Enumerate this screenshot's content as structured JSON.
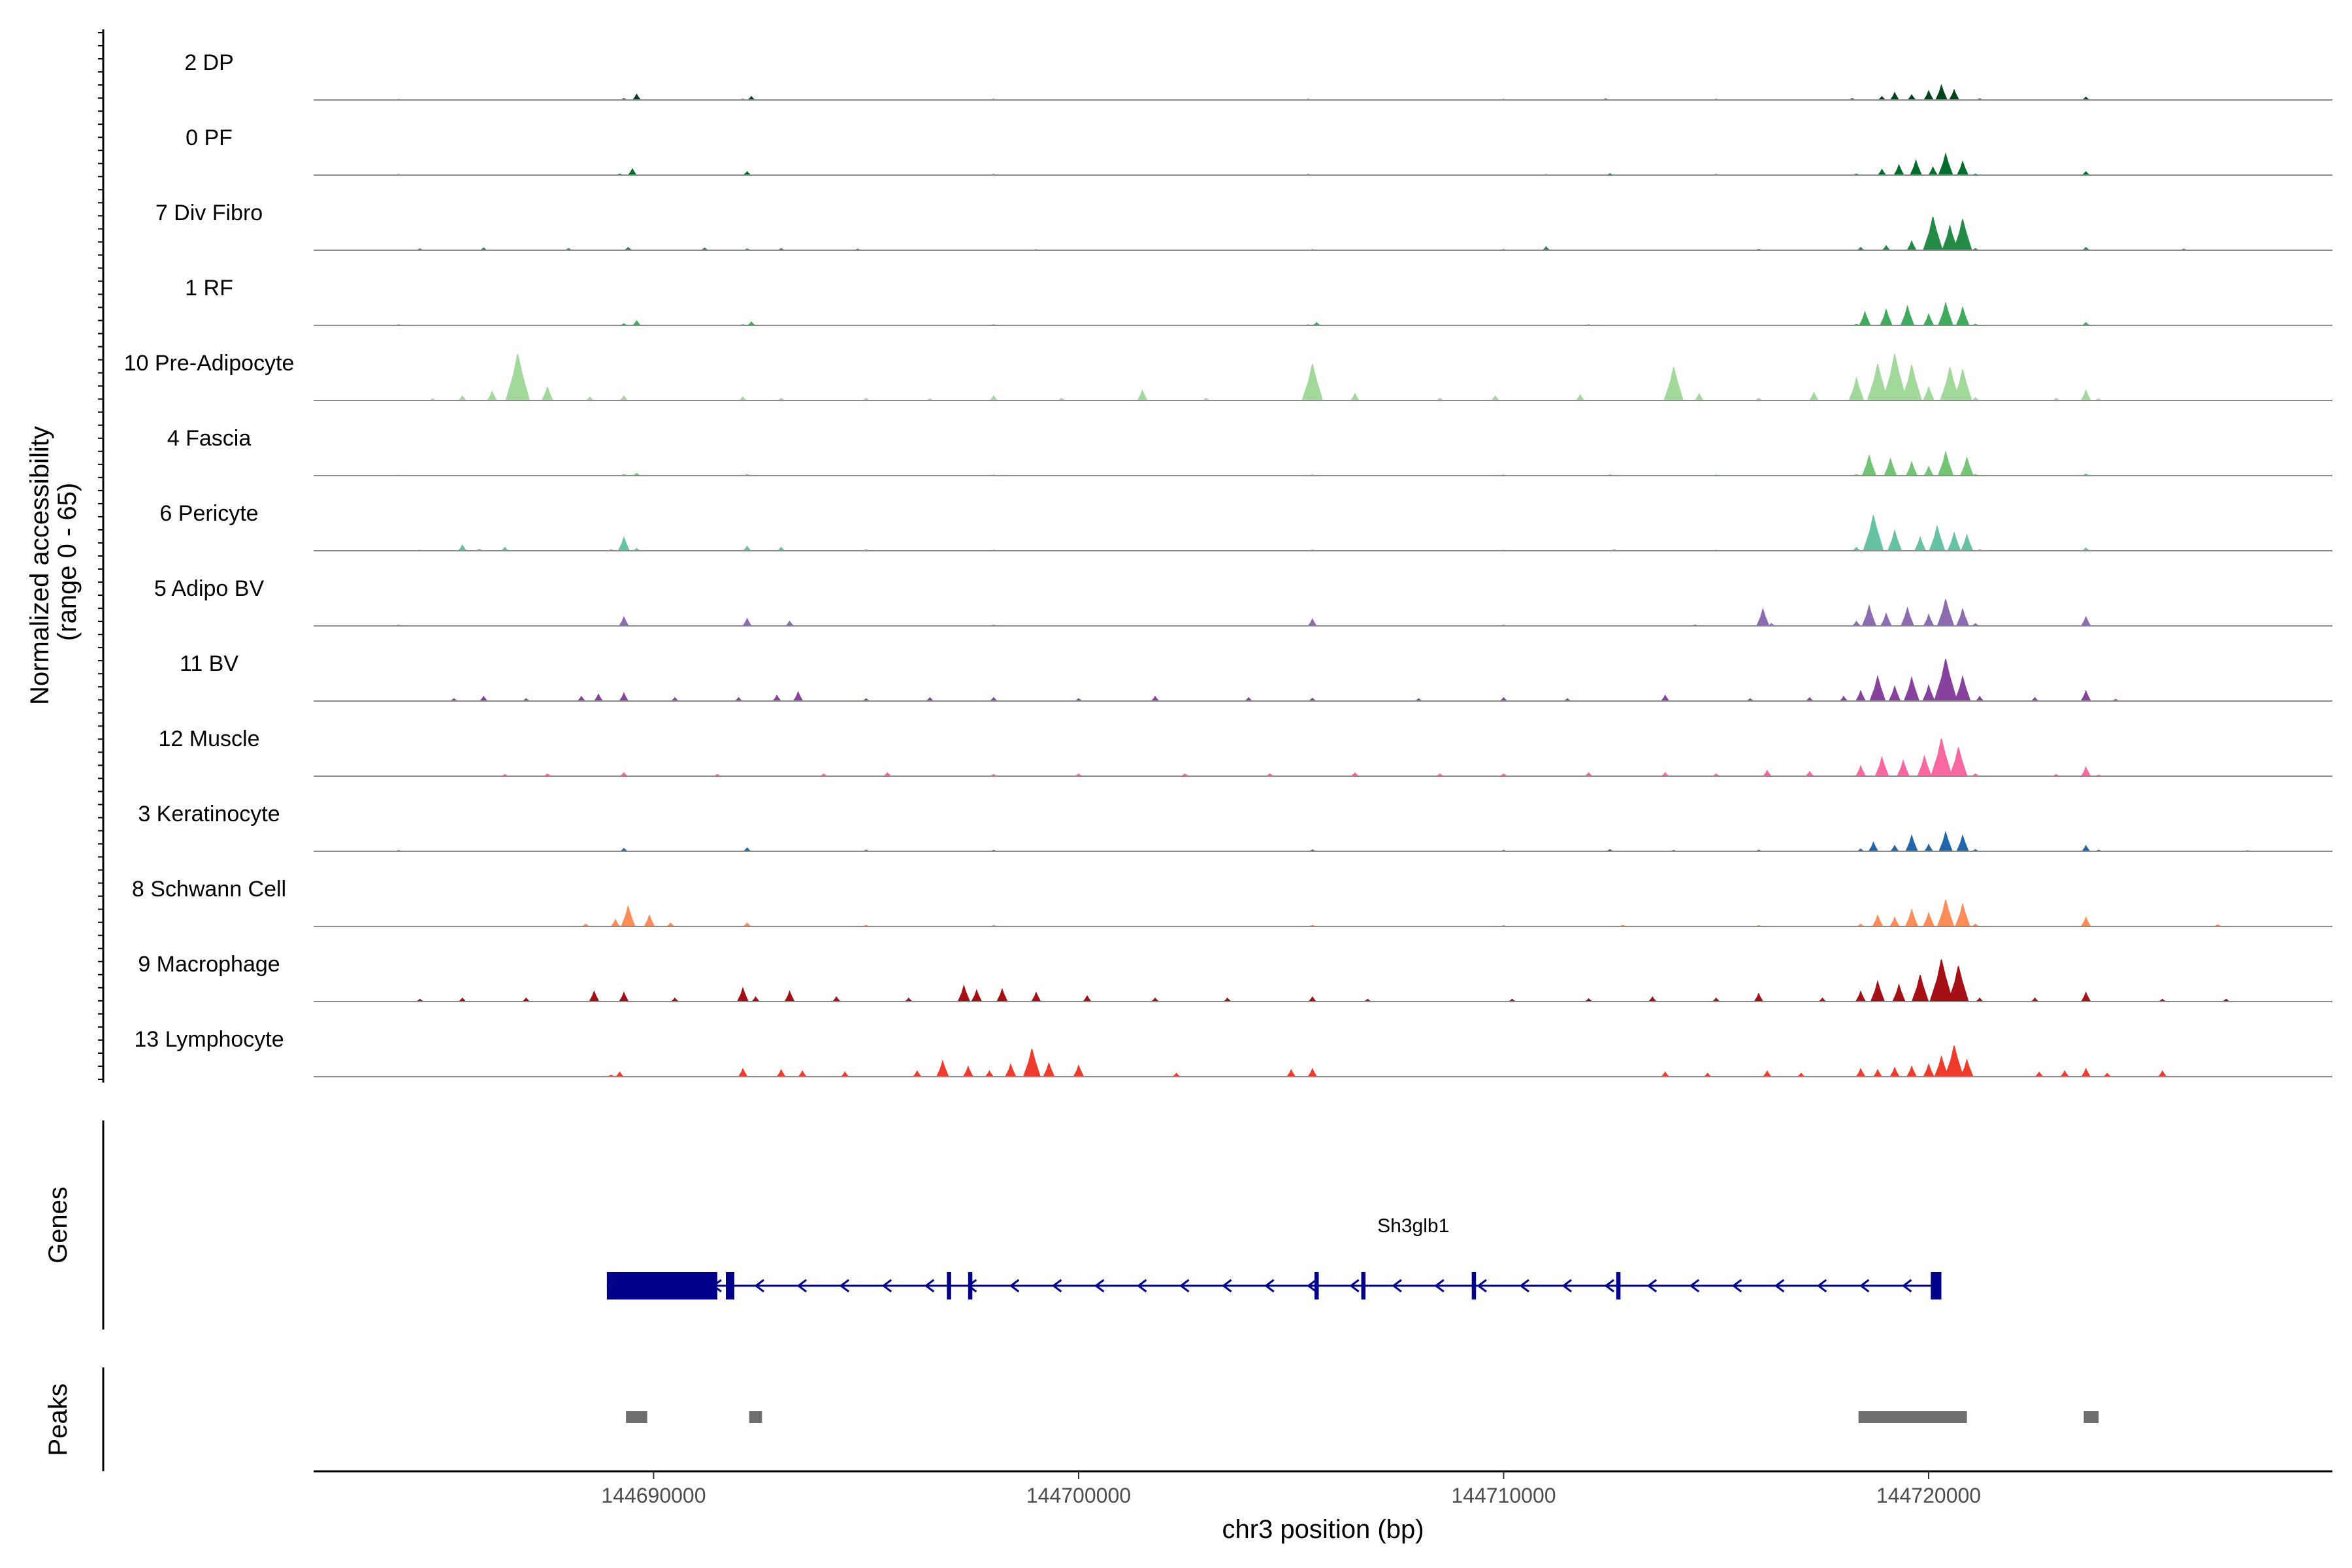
{
  "chart_data": {
    "type": "area",
    "title": "",
    "ylabel_line1": "Normalized accessibility",
    "ylabel_line2": "(range 0 - 65)",
    "ylim": [
      0,
      65
    ],
    "xlabel": "chr3 position (bp)",
    "xlim": [
      144682000,
      144729500
    ],
    "x_ticks": [
      144690000,
      144700000,
      144710000,
      144720000
    ],
    "x_tick_labels": [
      "144690000",
      "144700000",
      "144710000",
      "144720000"
    ],
    "genes_label": "Genes",
    "peaks_label": "Peaks",
    "gene": {
      "name": "Sh3glb1",
      "strand": "-",
      "start": 144688900,
      "end": 144720250,
      "exons": [
        {
          "start": 144688900,
          "end": 144691500,
          "thick": true
        },
        {
          "start": 144691700,
          "end": 144691900,
          "thick": false
        },
        {
          "start": 144696900,
          "end": 144697000,
          "thick": false
        },
        {
          "start": 144697400,
          "end": 144697500,
          "thick": false
        },
        {
          "start": 144705550,
          "end": 144705650,
          "thick": false
        },
        {
          "start": 144706650,
          "end": 144706750,
          "thick": false
        },
        {
          "start": 144709250,
          "end": 144709350,
          "thick": false
        },
        {
          "start": 144712650,
          "end": 144712750,
          "thick": false
        },
        {
          "start": 144720050,
          "end": 144720300,
          "thick": false
        }
      ]
    },
    "peaks": [
      {
        "start": 144689350,
        "end": 144689850
      },
      {
        "start": 144692250,
        "end": 144692550
      },
      {
        "start": 144718350,
        "end": 144720900
      },
      {
        "start": 144723650,
        "end": 144724000
      }
    ],
    "series": [
      {
        "name": "2 DP",
        "color": "#00441b",
        "x": [
          144684000,
          144689300,
          144689600,
          144692100,
          144692300,
          144698000,
          144705400,
          144710000,
          144712400,
          144715000,
          144718200,
          144718900,
          144719200,
          144719600,
          144720000,
          144720300,
          144720600,
          144721200,
          144723700
        ],
        "y": [
          0.4,
          1.2,
          5.0,
          0.6,
          3.0,
          0.5,
          0.5,
          0.4,
          0.9,
          0.5,
          1.2,
          3.0,
          6.5,
          4.5,
          8.0,
          13.0,
          9.0,
          1.0,
          2.5
        ]
      },
      {
        "name": "0 PF",
        "color": "#006d2c",
        "x": [
          144684000,
          144689200,
          144689500,
          144692200,
          144698000,
          144705400,
          144711000,
          144712500,
          144715000,
          144718300,
          144718900,
          144719300,
          144719700,
          144720100,
          144720400,
          144720800,
          144721100,
          144723700
        ],
        "y": [
          0.4,
          1.0,
          5.5,
          3.0,
          0.5,
          0.5,
          0.4,
          1.2,
          0.5,
          1.0,
          5.0,
          9.0,
          13.0,
          7.0,
          19.0,
          12.0,
          1.0,
          3.0
        ]
      },
      {
        "name": "7 Div Fibro",
        "color": "#238b45",
        "x": [
          144684500,
          144686000,
          144688000,
          144689400,
          144691200,
          144692200,
          144693000,
          144694800,
          144699000,
          144705500,
          144710000,
          144711000,
          144716000,
          144718400,
          144719000,
          144719600,
          144720100,
          144720500,
          144720800,
          144721100,
          144723700,
          144726000
        ],
        "y": [
          1.2,
          2.0,
          1.5,
          2.5,
          2.0,
          1.2,
          1.5,
          1.0,
          0.5,
          0.5,
          0.6,
          3.0,
          0.8,
          2.5,
          4.0,
          8.0,
          30.0,
          22.0,
          28.0,
          1.5,
          2.5,
          1.0
        ]
      },
      {
        "name": "1 RF",
        "color": "#41ab5d",
        "x": [
          144684000,
          144689300,
          144689600,
          144692100,
          144692300,
          144698000,
          144705400,
          144705600,
          144712000,
          144718300,
          144718500,
          144719000,
          144719500,
          144720000,
          144720400,
          144720800,
          144721100,
          144723700
        ],
        "y": [
          0.5,
          1.5,
          4.0,
          0.6,
          3.0,
          0.5,
          0.5,
          2.5,
          0.5,
          1.0,
          12.0,
          14.0,
          17.0,
          10.0,
          20.0,
          16.0,
          1.0,
          2.5
        ]
      },
      {
        "name": "10 Pre-Adipocyte",
        "color": "#a1d99b",
        "x": [
          144684800,
          144685500,
          144686200,
          144686800,
          144687500,
          144688500,
          144689300,
          144692100,
          144693000,
          144695000,
          144696500,
          144698000,
          144699600,
          144701500,
          144703000,
          144705500,
          144706500,
          144708500,
          144709800,
          144711800,
          144714000,
          144714600,
          144716000,
          144717300,
          144718300,
          144718800,
          144719200,
          144719600,
          144720000,
          144720500,
          144720800,
          144721100,
          144723000,
          144723700,
          144724000
        ],
        "y": [
          1.5,
          4.0,
          8.0,
          42.0,
          12.0,
          3.0,
          4.0,
          3.0,
          2.0,
          2.0,
          1.5,
          4.0,
          2.0,
          9.0,
          2.0,
          33.0,
          6.0,
          2.0,
          4.0,
          5.0,
          30.0,
          6.0,
          2.0,
          7.0,
          20.0,
          33.0,
          42.0,
          32.0,
          12.0,
          30.0,
          28.0,
          2.5,
          2.0,
          9.0,
          1.5
        ]
      },
      {
        "name": "4 Fascia",
        "color": "#74c476",
        "x": [
          144684000,
          144689300,
          144689600,
          144692200,
          144698000,
          144705500,
          144710000,
          144712500,
          144715000,
          144718300,
          144718600,
          144719100,
          144719600,
          144720000,
          144720400,
          144720900,
          144721100,
          144723700
        ],
        "y": [
          0.4,
          1.0,
          2.0,
          1.0,
          0.5,
          0.6,
          0.5,
          0.8,
          0.5,
          1.0,
          18.0,
          15.0,
          12.0,
          8.0,
          21.0,
          16.0,
          1.0,
          1.5
        ]
      },
      {
        "name": "6 Pericyte",
        "color": "#66c2a4",
        "x": [
          144684500,
          144685500,
          144685900,
          144686500,
          144689000,
          144689300,
          144689600,
          144692200,
          144693000,
          144695000,
          144698000,
          144705500,
          144710000,
          144712600,
          144715000,
          144718300,
          144718700,
          144719200,
          144719800,
          144720200,
          144720600,
          144720900,
          144721200,
          144723700
        ],
        "y": [
          0.5,
          5.0,
          1.5,
          3.0,
          1.0,
          12.0,
          2.0,
          4.0,
          3.0,
          1.0,
          0.5,
          0.7,
          0.5,
          1.0,
          0.5,
          3.0,
          32.0,
          18.0,
          12.0,
          22.0,
          16.0,
          14.0,
          1.0,
          2.5
        ]
      },
      {
        "name": "5 Adipo BV",
        "color": "#8c6bb1",
        "x": [
          144684000,
          144689300,
          144692200,
          144693200,
          144698000,
          144705500,
          144710000,
          144714500,
          144716100,
          144716300,
          144718300,
          144718600,
          144719000,
          144719500,
          144720000,
          144720400,
          144720800,
          144721100,
          144723700
        ],
        "y": [
          0.6,
          8.0,
          6.5,
          4.0,
          0.6,
          6.0,
          0.6,
          0.8,
          15.0,
          2.0,
          4.0,
          18.0,
          11.0,
          16.0,
          10.0,
          24.0,
          15.0,
          2.0,
          8.0
        ]
      },
      {
        "name": "11 BV",
        "color": "#88419d",
        "x": [
          144685300,
          144686000,
          144687000,
          144688300,
          144688700,
          144689300,
          144690500,
          144692000,
          144692900,
          144693400,
          144695000,
          144696500,
          144698000,
          144700000,
          144701800,
          144704000,
          144705500,
          144708000,
          144710000,
          144711500,
          144713800,
          144715800,
          144717200,
          144718000,
          144718400,
          144718800,
          144719200,
          144719600,
          144720000,
          144720400,
          144720800,
          144721200,
          144722500,
          144723700,
          144724400
        ],
        "y": [
          2.0,
          4.0,
          2.0,
          4.0,
          6.0,
          7.0,
          3.0,
          3.0,
          5.0,
          8.0,
          2.0,
          3.0,
          3.0,
          2.0,
          4.0,
          3.0,
          2.5,
          2.0,
          3.0,
          2.0,
          5.0,
          2.0,
          3.0,
          4.0,
          9.0,
          22.0,
          13.0,
          21.0,
          14.0,
          38.0,
          22.0,
          4.0,
          3.0,
          9.0,
          1.5
        ]
      },
      {
        "name": "12 Muscle",
        "color": "#f768a1",
        "x": [
          144686500,
          144687500,
          144689300,
          144691500,
          144694000,
          144695500,
          144698000,
          144700000,
          144702500,
          144704500,
          144706500,
          144708500,
          144710000,
          144712000,
          144713800,
          144715000,
          144716200,
          144717200,
          144718400,
          144718900,
          144719400,
          144719900,
          144720300,
          144720700,
          144721100,
          144723000,
          144723700,
          144724000
        ],
        "y": [
          1.5,
          2.0,
          3.0,
          1.5,
          2.0,
          3.0,
          1.5,
          2.0,
          2.0,
          2.0,
          3.0,
          2.0,
          2.0,
          3.0,
          3.0,
          2.0,
          5.0,
          4.0,
          9.0,
          17.0,
          14.0,
          18.0,
          34.0,
          26.0,
          2.0,
          1.5,
          8.0,
          1.0
        ]
      },
      {
        "name": "3 Keratinocyte",
        "color": "#2166ac",
        "x": [
          144684000,
          144689300,
          144692200,
          144695000,
          144698000,
          144705500,
          144710000,
          144712500,
          144714000,
          144716000,
          144718400,
          144718700,
          144719200,
          144719600,
          144720000,
          144720400,
          144720800,
          144721100,
          144723700,
          144724000,
          144727500
        ],
        "y": [
          0.6,
          2.5,
          3.0,
          1.0,
          0.8,
          1.2,
          0.8,
          1.5,
          0.8,
          1.0,
          2.0,
          8.0,
          5.0,
          14.0,
          6.0,
          17.0,
          14.0,
          1.5,
          5.0,
          1.0,
          0.5
        ]
      },
      {
        "name": "8 Schwann Cell",
        "color": "#fc8d59",
        "x": [
          144688400,
          144689100,
          144689400,
          144689900,
          144690400,
          144692200,
          144695000,
          144698000,
          144705500,
          144710000,
          144712800,
          144716000,
          144718400,
          144718800,
          144719200,
          144719600,
          144720000,
          144720400,
          144720800,
          144721100,
          144723700,
          144726800
        ],
        "y": [
          2.0,
          6.0,
          18.0,
          10.0,
          3.0,
          3.0,
          1.0,
          0.8,
          1.0,
          0.8,
          1.0,
          0.8,
          2.0,
          10.0,
          8.0,
          15.0,
          12.0,
          24.0,
          20.0,
          2.0,
          8.0,
          1.5
        ]
      },
      {
        "name": "9 Macrophage",
        "color": "#a50f15",
        "x": [
          144684500,
          144685500,
          144687000,
          144688600,
          144689300,
          144690500,
          144692100,
          144692400,
          144693200,
          144694300,
          144696000,
          144697300,
          144697600,
          144698200,
          144699000,
          144700200,
          144701800,
          144703500,
          144705500,
          144706800,
          144710200,
          144712000,
          144713500,
          144715000,
          144716000,
          144717500,
          144718400,
          144718800,
          144719300,
          144719800,
          144720300,
          144720700,
          144721200,
          144722500,
          144723700,
          144725500,
          144727000
        ],
        "y": [
          2.0,
          3.0,
          3.0,
          9.0,
          8.0,
          3.0,
          12.0,
          4.0,
          9.0,
          4.0,
          3.0,
          14.0,
          10.0,
          11.0,
          8.0,
          5.0,
          3.0,
          3.0,
          4.0,
          2.0,
          2.0,
          2.5,
          4.0,
          3.0,
          7.0,
          3.0,
          9.0,
          18.0,
          15.0,
          24.0,
          38.0,
          32.0,
          3.0,
          3.0,
          8.0,
          2.0,
          2.0
        ]
      },
      {
        "name": "13 Lymphocyte",
        "color": "#ef3b2c",
        "x": [
          144689000,
          144689200,
          144692100,
          144693000,
          144693500,
          144694500,
          144696200,
          144696800,
          144697400,
          144697900,
          144698400,
          144698900,
          144699300,
          144700000,
          144702300,
          144705000,
          144705500,
          144713800,
          144714800,
          144716200,
          144717000,
          144718400,
          144718800,
          144719200,
          144719600,
          144720000,
          144720300,
          144720600,
          144720900,
          144722600,
          144723200,
          144723700,
          144724200,
          144725500
        ],
        "y": [
          1.5,
          4.0,
          7.0,
          6.0,
          5.0,
          4.0,
          5.0,
          14.0,
          9.0,
          5.0,
          11.0,
          25.0,
          12.0,
          10.0,
          3.0,
          6.0,
          7.0,
          4.0,
          3.0,
          5.0,
          3.0,
          7.0,
          6.0,
          8.0,
          9.0,
          11.0,
          18.0,
          28.0,
          15.0,
          4.0,
          5.0,
          7.0,
          3.0,
          5.0
        ]
      }
    ]
  }
}
